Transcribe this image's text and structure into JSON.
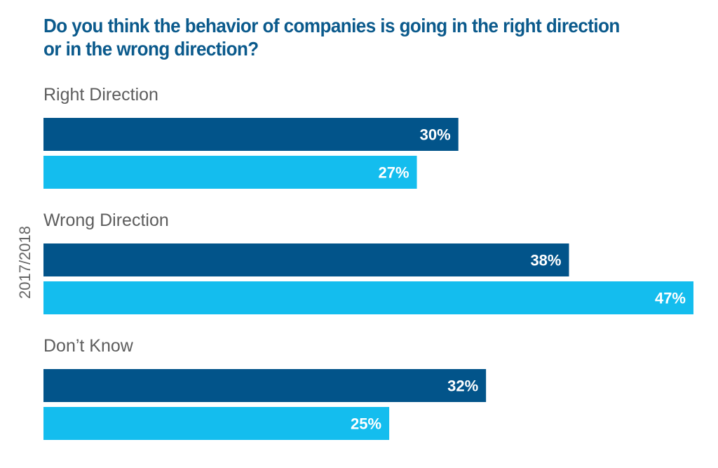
{
  "chart_data": {
    "type": "bar",
    "orientation": "horizontal",
    "title_lines": [
      "Do you think the behavior of companies is going in the right direction",
      "or in the wrong direction?"
    ],
    "side_label": "2017/2018",
    "categories": [
      "Right Direction",
      "Wrong Direction",
      "Don’t Know"
    ],
    "series": [
      {
        "values": [
          30,
          38,
          32
        ],
        "labels": [
          "30%",
          "38%",
          "32%"
        ],
        "color": "#02548a"
      },
      {
        "values": [
          27,
          47,
          25
        ],
        "labels": [
          "27%",
          "47%",
          "25%"
        ],
        "color": "#14bdee"
      }
    ],
    "xlim": [
      0,
      47
    ],
    "grid": false,
    "title_color": "#0b5a8c"
  }
}
